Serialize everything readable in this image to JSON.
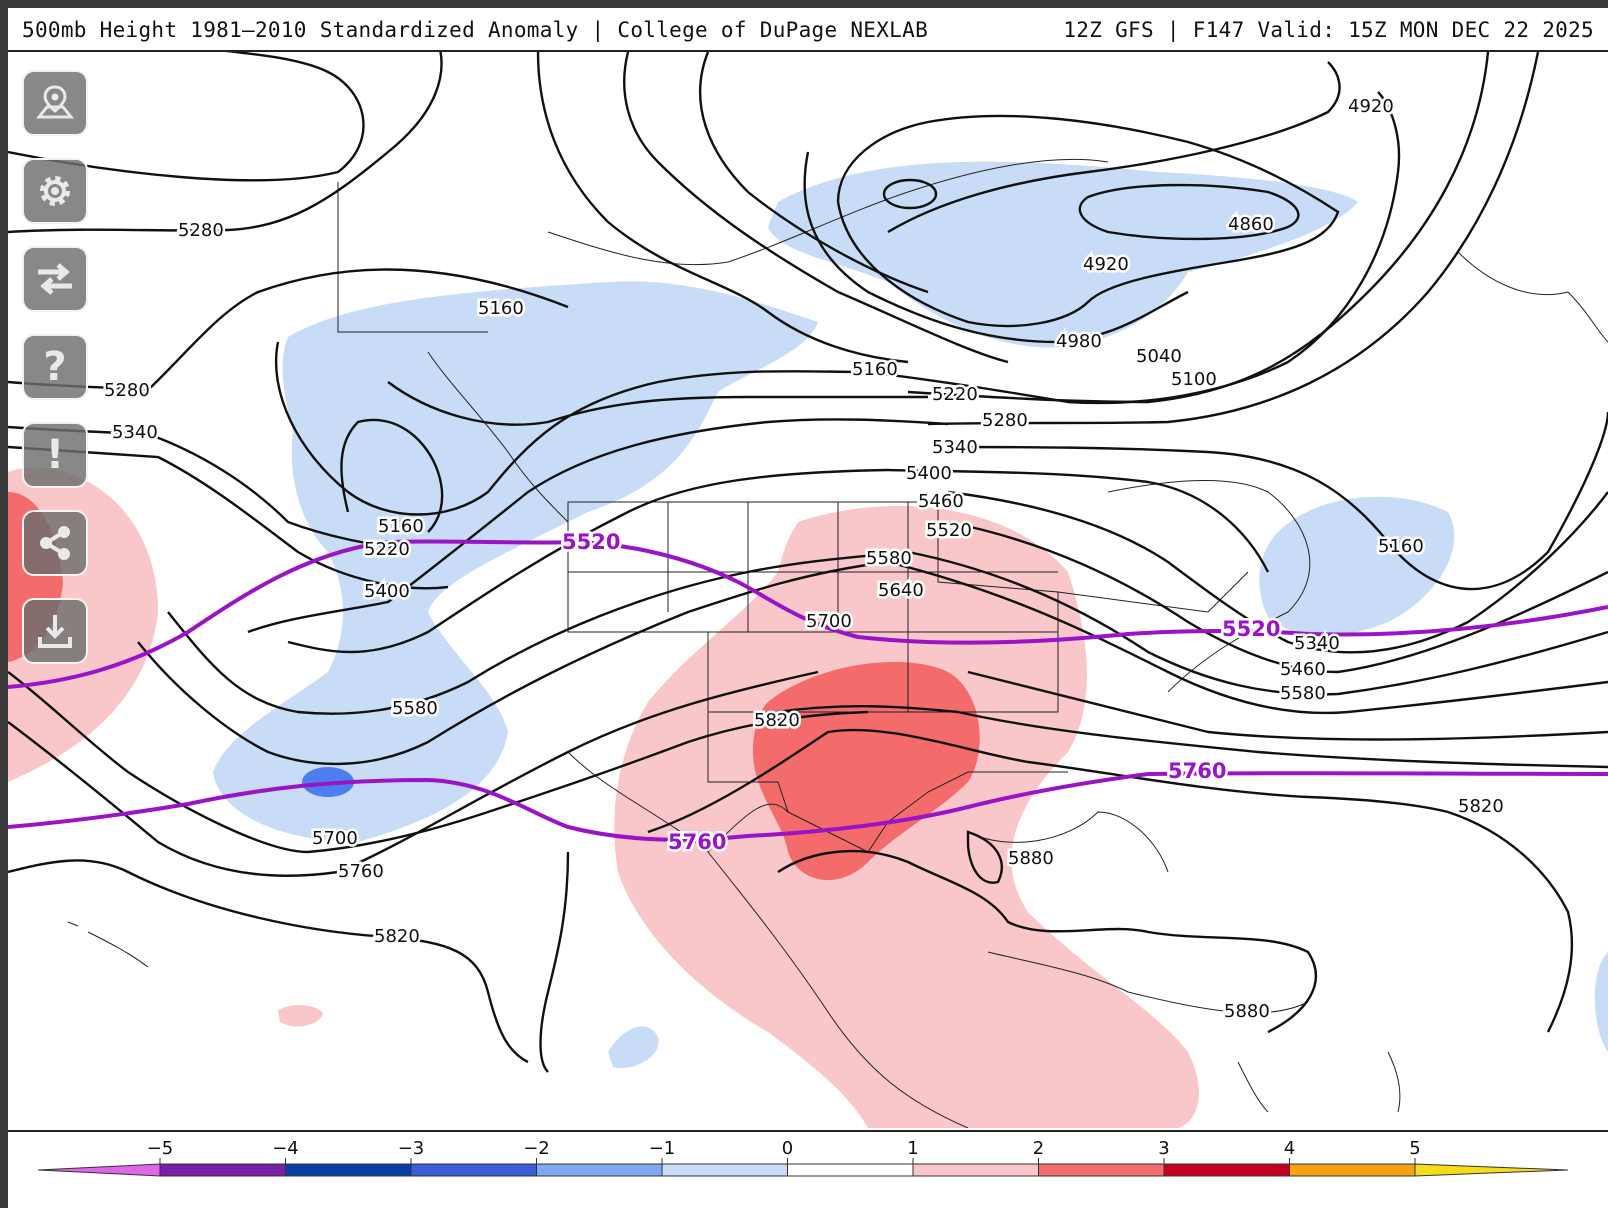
{
  "header": {
    "title": "500mb Height 1981–2010 Standardized Anomaly | College of DuPage NEXLAB",
    "run": "12Z GFS | F147 Valid: 15Z MON DEC 22 2025"
  },
  "contour_labels": [
    "4920",
    "4860",
    "4920",
    "4980",
    "5040",
    "5100",
    "5280",
    "5160",
    "5280",
    "5340",
    "5160",
    "5220",
    "5280",
    "5340",
    "5400",
    "5460",
    "5160",
    "5220",
    "5400",
    "5520",
    "5580",
    "5640",
    "5700",
    "5580",
    "5700",
    "5760",
    "5820",
    "5820",
    "5880",
    "5820",
    "5880",
    "5160",
    "5340",
    "5460",
    "5580"
  ],
  "highlight_labels": [
    "5520",
    "5520",
    "5760",
    "5760"
  ],
  "toolbar": [
    {
      "icon": "map-pin-icon"
    },
    {
      "icon": "gear-icon"
    },
    {
      "icon": "swap-arrows-icon"
    },
    {
      "icon": "help-icon",
      "glyph": "?"
    },
    {
      "icon": "alert-icon",
      "glyph": "!"
    },
    {
      "icon": "share-icon"
    },
    {
      "icon": "download-icon"
    }
  ],
  "colorbar": {
    "ticks": [
      "−5",
      "−4",
      "−3",
      "−2",
      "−1",
      "0",
      "1",
      "2",
      "3",
      "4",
      "5"
    ],
    "colors": [
      "#e066e8",
      "#7a1fa8",
      "#0b3fa8",
      "#3a5fd9",
      "#7fa8f0",
      "#c8dcf7",
      "#ffffff",
      "#f9c6c9",
      "#f36b6b",
      "#c4001e",
      "#f3a30f",
      "#f5dc18"
    ]
  },
  "colors": {
    "negative_anomaly": "#c8dcf7",
    "negative_anomaly_strong": "#4d7ef0",
    "positive_anomaly": "#f9c6c9",
    "positive_anomaly_strong": "#f36b6b",
    "highlight_contour": "#9a13c7"
  }
}
